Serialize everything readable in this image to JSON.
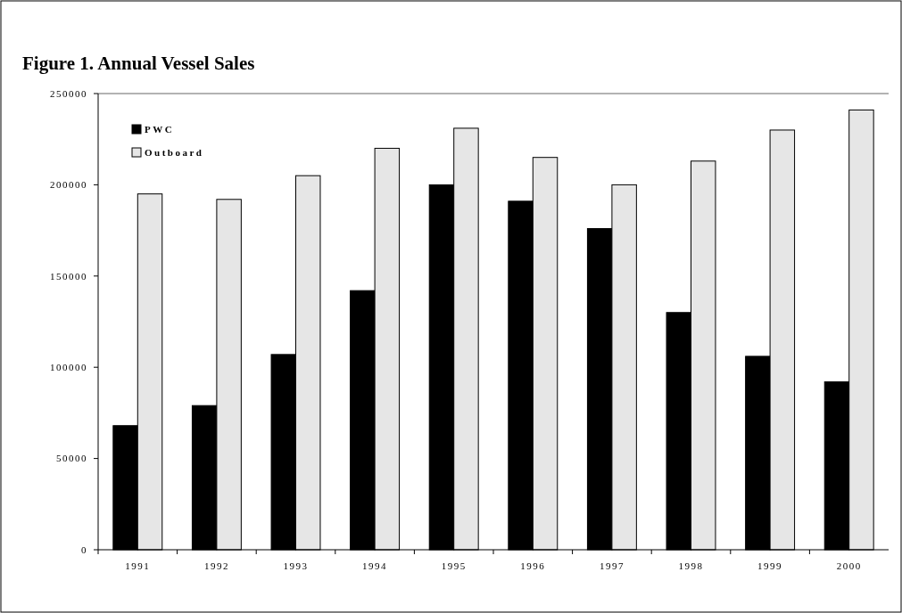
{
  "chart_data": {
    "type": "bar",
    "title": "Figure 1. Annual Vessel Sales",
    "categories": [
      "1991",
      "1992",
      "1993",
      "1994",
      "1995",
      "1996",
      "1997",
      "1998",
      "1999",
      "2000"
    ],
    "series": [
      {
        "name": "PWC",
        "color": "#000000",
        "values": [
          68000,
          79000,
          107000,
          142000,
          200000,
          191000,
          176000,
          130000,
          106000,
          92000
        ]
      },
      {
        "name": "Outboard",
        "color": "#e6e6e6",
        "values": [
          195000,
          192000,
          205000,
          220000,
          231000,
          215000,
          200000,
          213000,
          230000,
          241000
        ]
      }
    ],
    "ylim": [
      0,
      250000
    ],
    "yticks": [
      0,
      50000,
      100000,
      150000,
      200000,
      250000
    ],
    "legend": "top left",
    "grid": false
  }
}
